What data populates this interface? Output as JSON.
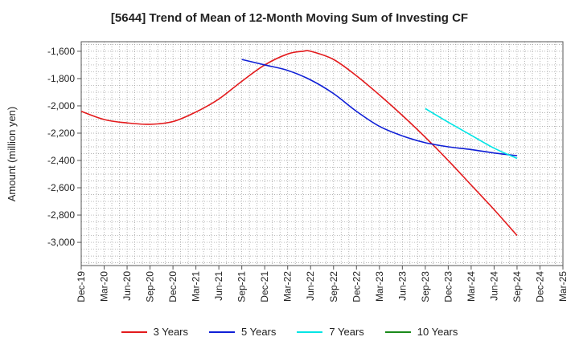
{
  "chart_data": {
    "type": "line",
    "title": "[5644]  Trend of Mean of 12-Month Moving Sum of Investing CF",
    "xlabel": "",
    "ylabel": "Amount (million yen)",
    "ylim": [
      -3170,
      -1530
    ],
    "yticks": [
      -1600,
      -1800,
      -2000,
      -2200,
      -2400,
      -2600,
      -2800,
      -3000
    ],
    "ytick_labels": [
      "-1,600",
      "-1,800",
      "-2,000",
      "-2,200",
      "-2,400",
      "-2,600",
      "-2,800",
      "-3,000"
    ],
    "x_tick_labels": [
      "Dec-19",
      "Mar-20",
      "Jun-20",
      "Sep-20",
      "Dec-20",
      "Mar-21",
      "Jun-21",
      "Sep-21",
      "Dec-21",
      "Mar-22",
      "Jun-22",
      "Sep-22",
      "Dec-22",
      "Mar-23",
      "Jun-23",
      "Sep-23",
      "Dec-23",
      "Mar-24",
      "Jun-24",
      "Sep-24",
      "Dec-24",
      "Mar-25"
    ],
    "x_range_months": [
      0,
      63
    ],
    "grid": true,
    "legend_position": "bottom",
    "series": [
      {
        "name": "3 Years",
        "color": "#e31a1c",
        "x_months": [
          0,
          3,
          6,
          9,
          12,
          15,
          18,
          21,
          24,
          27,
          29,
          30,
          33,
          36,
          39,
          42,
          45,
          48,
          51,
          54,
          57
        ],
        "values": [
          -2040,
          -2100,
          -2125,
          -2135,
          -2115,
          -2045,
          -1950,
          -1820,
          -1700,
          -1620,
          -1600,
          -1600,
          -1660,
          -1780,
          -1920,
          -2070,
          -2230,
          -2400,
          -2580,
          -2760,
          -2950
        ]
      },
      {
        "name": "5 Years",
        "color": "#0f1fd6",
        "x_months": [
          21,
          24,
          27,
          30,
          33,
          36,
          39,
          42,
          45,
          48,
          51,
          54,
          57
        ],
        "values": [
          -1660,
          -1700,
          -1740,
          -1810,
          -1910,
          -2040,
          -2150,
          -2220,
          -2270,
          -2300,
          -2320,
          -2345,
          -2365
        ]
      },
      {
        "name": "7 Years",
        "color": "#00e5e5",
        "x_months": [
          45,
          48,
          51,
          54,
          57
        ],
        "values": [
          -2020,
          -2120,
          -2215,
          -2310,
          -2385
        ]
      },
      {
        "name": "10 Years",
        "color": "#1a8a1a",
        "x_months": [],
        "values": []
      }
    ]
  }
}
